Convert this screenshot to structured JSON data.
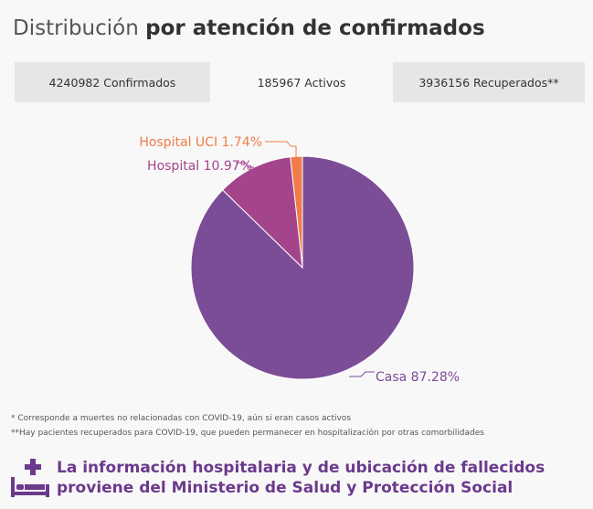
{
  "title": {
    "light": "Distribución",
    "bold": "por atención de confirmados"
  },
  "tabs": [
    {
      "label": "4240982 Confirmados",
      "active": false
    },
    {
      "label": "185967 Activos",
      "active": true
    },
    {
      "label": "3936156 Recuperados**",
      "active": false
    }
  ],
  "chart_data": {
    "type": "pie",
    "slices": [
      {
        "label": "Hospital UCI 1.74%",
        "value": 1.74,
        "color": "#f07c4a"
      },
      {
        "label": "Hospital 10.97%",
        "value": 10.97,
        "color": "#a4458c"
      },
      {
        "label": "Casa 87.28%",
        "value": 87.28,
        "color": "#7b4d96"
      }
    ]
  },
  "footnotes": [
    "* Corresponde a muertes no relacionadas con COVID-19, aún si eran casos activos",
    "**Hay pacientes recuperados para COVID-19, que pueden permanecer en hospitalización por otras comorbilidades"
  ],
  "info": {
    "icon": "hospital-bed-icon",
    "line1": "La información hospitalaria y de ubicación de fallecidos",
    "line2": "proviene del Ministerio de Salud y Protección Social",
    "color": "#6b3a8c"
  }
}
